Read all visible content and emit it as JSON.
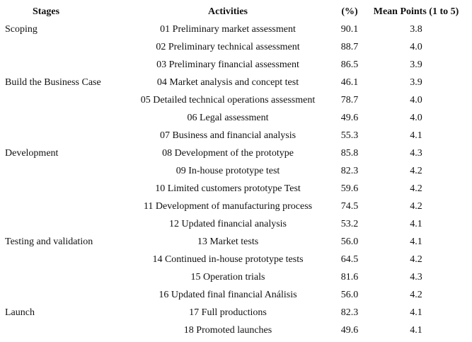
{
  "table": {
    "header": [
      "Stages",
      "Activities",
      "(%)",
      "Mean Points (1 to 5)"
    ],
    "groups": [
      {
        "stage": "Scoping",
        "rows": [
          [
            "01 Preliminary market assessment",
            "90.1",
            "3.8"
          ],
          [
            "02 Preliminary technical assessment",
            "88.7",
            "4.0"
          ],
          [
            "03 Preliminary financial assessment",
            "86.5",
            "3.9"
          ]
        ]
      },
      {
        "stage": "Build the Business Case",
        "rows": [
          [
            "04 Market analysis and concept test",
            "46.1",
            "3.9"
          ],
          [
            "05 Detailed technical operations assessment",
            "78.7",
            "4.0"
          ],
          [
            "06 Legal assessment",
            "49.6",
            "4.0"
          ],
          [
            "07 Business and financial analysis",
            "55.3",
            "4.1"
          ]
        ]
      },
      {
        "stage": "Development",
        "rows": [
          [
            "08 Development of the prototype",
            "85.8",
            "4.3"
          ],
          [
            "09 In-house prototype test",
            "82.3",
            "4.2"
          ],
          [
            "10 Limited customers prototype Test",
            "59.6",
            "4.2"
          ],
          [
            "11 Development of manufacturing process",
            "74.5",
            "4.2"
          ],
          [
            "12 Updated financial analysis",
            "53.2",
            "4.1"
          ]
        ]
      },
      {
        "stage": "Testing and validation",
        "rows": [
          [
            "13 Market tests",
            "56.0",
            "4.1"
          ],
          [
            "14 Continued in-house prototype tests",
            "64.5",
            "4.2"
          ],
          [
            "15 Operation trials",
            "81.6",
            "4.3"
          ],
          [
            "16 Updated final financial Análisis",
            "56.0",
            "4.2"
          ]
        ]
      },
      {
        "stage": "Launch",
        "rows": [
          [
            "17 Full productions",
            "82.3",
            "4.1"
          ],
          [
            "18 Promoted launches",
            "49.6",
            "4.1"
          ]
        ]
      }
    ]
  }
}
